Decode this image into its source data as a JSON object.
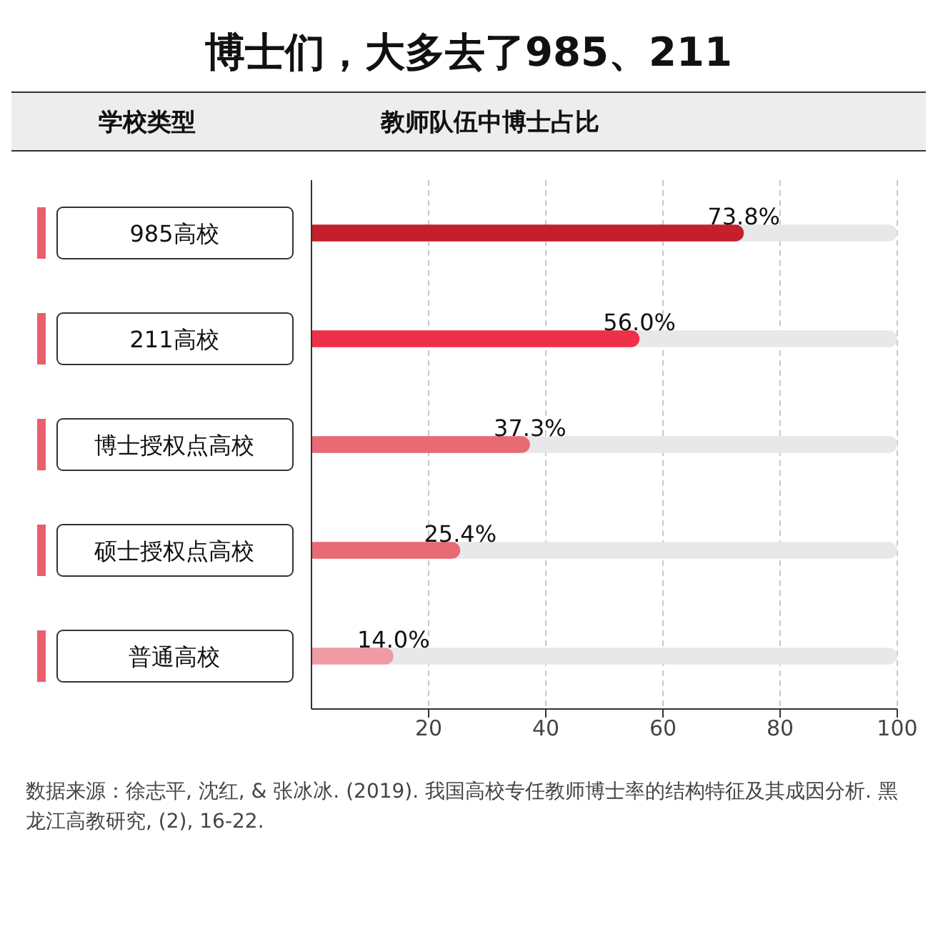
{
  "chart_data": {
    "type": "bar",
    "orientation": "horizontal",
    "title": "博士们，大多去了985、211",
    "ylabel": "学校类型",
    "xlabel": "教师队伍中博士占比",
    "categories": [
      "985高校",
      "211高校",
      "博士授权点高校",
      "硕士授权点高校",
      "普通高校"
    ],
    "values": [
      73.8,
      56.0,
      37.3,
      25.4,
      14.0
    ],
    "colors": [
      "#c41f2b",
      "#ee3048",
      "#e86a74",
      "#e86a74",
      "#f09ba3"
    ],
    "value_labels": [
      "73.8%",
      "56.0%",
      "37.3%",
      "25.4%",
      "14.0%"
    ],
    "xlim": [
      0,
      100
    ],
    "xticks": [
      20,
      40,
      60,
      80,
      100
    ],
    "grid": "x",
    "annotations": [
      "数据来源：徐志平, 沈红, & 张冰冰. (2019). 我国高校专任教师博士率的结构特征及其成因分析. 黑龙江高教研究, (2), 16-22."
    ]
  }
}
